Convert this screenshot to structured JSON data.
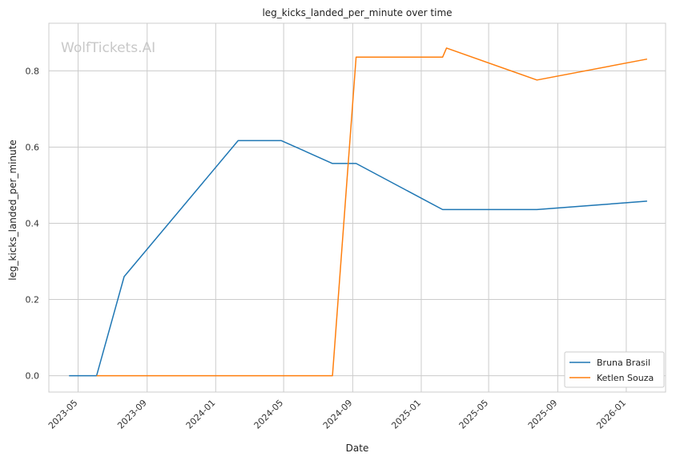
{
  "chart_data": {
    "type": "line",
    "title": "leg_kicks_landed_per_minute over time",
    "xlabel": "Date",
    "ylabel": "leg_kicks_landed_per_minute",
    "watermark": "WolfTickets.AI",
    "x_ticks": [
      "2023-05",
      "2023-09",
      "2024-01",
      "2024-05",
      "2024-09",
      "2025-01",
      "2025-05",
      "2025-09",
      "2026-01"
    ],
    "y_ticks": [
      "0.0",
      "0.2",
      "0.4",
      "0.6",
      "0.8"
    ],
    "y_tick_values": [
      0.0,
      0.2,
      0.4,
      0.6,
      0.8
    ],
    "xlim": [
      "2023-03-10",
      "2026-03-12"
    ],
    "ylim": [
      -0.043,
      0.925
    ],
    "grid": true,
    "legend_position": "lower-right",
    "series": [
      {
        "name": "Bruna Brasil",
        "color": "#1f77b4",
        "points": [
          [
            "2023-04-15",
            0.0
          ],
          [
            "2023-06-03",
            0.0
          ],
          [
            "2023-07-22",
            0.26
          ],
          [
            "2024-02-10",
            0.617
          ],
          [
            "2024-04-27",
            0.617
          ],
          [
            "2024-07-27",
            0.557
          ],
          [
            "2024-09-07",
            0.557
          ],
          [
            "2025-02-08",
            0.436
          ],
          [
            "2025-07-26",
            0.436
          ],
          [
            "2026-02-07",
            0.458
          ]
        ]
      },
      {
        "name": "Ketlen Souza",
        "color": "#ff7f0e",
        "points": [
          [
            "2023-06-03",
            0.0
          ],
          [
            "2024-07-27",
            0.0
          ],
          [
            "2024-09-07",
            0.836
          ],
          [
            "2025-02-08",
            0.836
          ],
          [
            "2025-02-15",
            0.86
          ],
          [
            "2025-07-26",
            0.776
          ],
          [
            "2026-02-07",
            0.831
          ]
        ]
      }
    ]
  }
}
